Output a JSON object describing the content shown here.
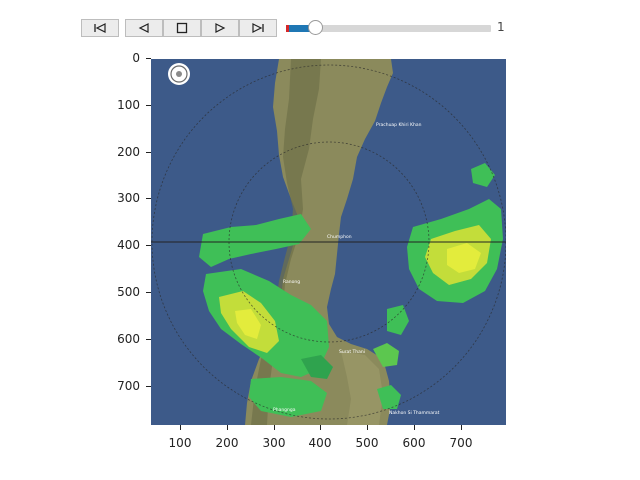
{
  "player": {
    "controls": [
      {
        "name": "first-frame-button",
        "icon": "skip-to-start-icon"
      },
      {
        "name": "previous-frame-button",
        "icon": "step-back-icon"
      },
      {
        "name": "stop-button",
        "icon": "stop-icon"
      },
      {
        "name": "play-button",
        "icon": "play-icon"
      },
      {
        "name": "last-frame-button",
        "icon": "skip-to-end-icon"
      }
    ],
    "frame_slider": {
      "value": 1,
      "position_fraction": 0.14
    },
    "frame_readout": "1"
  },
  "radar_map": {
    "emblem_icon": "department-seal-icon",
    "places": [
      "Prachuap Khiri Khan",
      "Chumphon",
      "Ranong",
      "Surat Thani",
      "Phangnga",
      "Nakhon Si Thammarat"
    ]
  },
  "axes": {
    "x_ticks": [
      "100",
      "200",
      "300",
      "400",
      "500",
      "600",
      "700"
    ],
    "y_ticks": [
      "0",
      "100",
      "200",
      "300",
      "400",
      "500",
      "600",
      "700"
    ]
  },
  "colors": {
    "sea": "#3d5a89",
    "land": "#8b8a5c",
    "slider_fill": "#1f77b4",
    "echo_light": "#3fbf57",
    "echo_strong": "#d8e83a"
  }
}
